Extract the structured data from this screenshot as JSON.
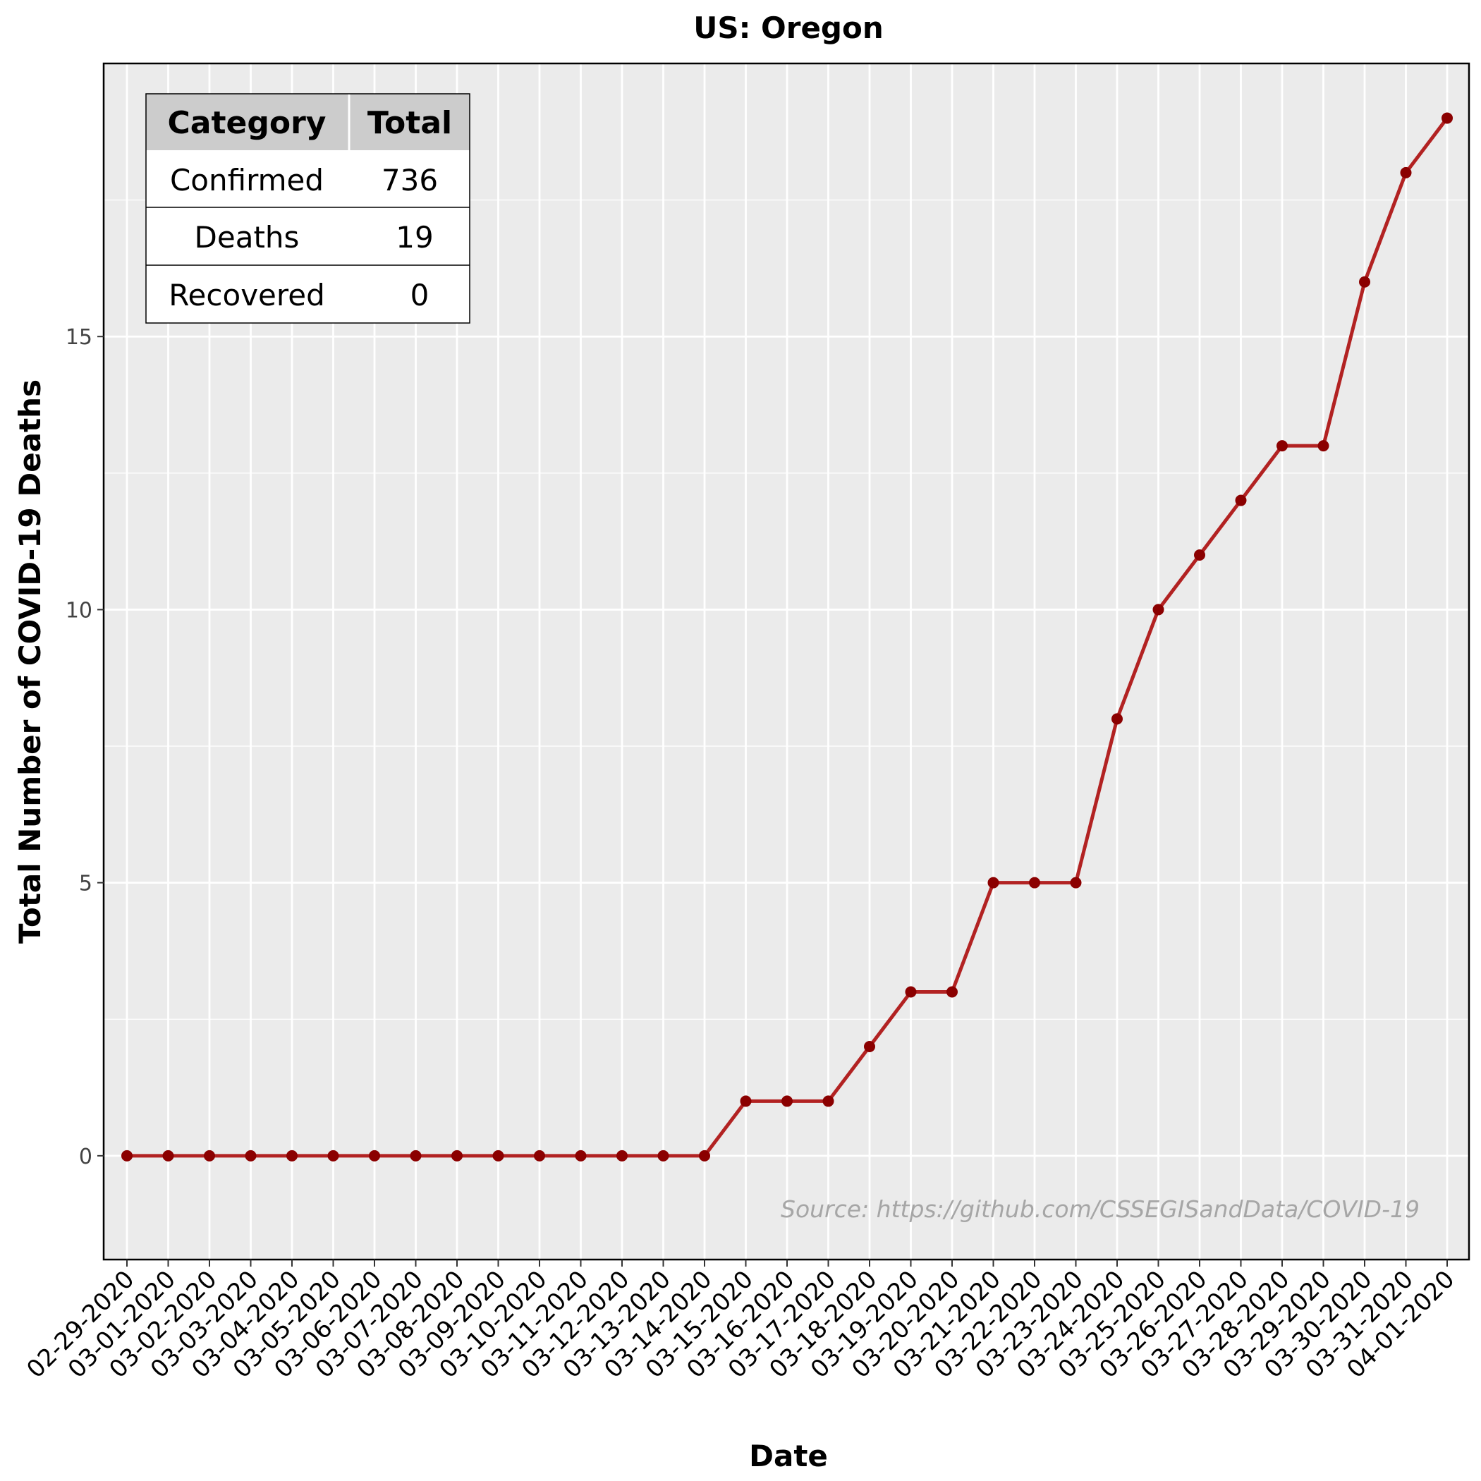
{
  "chart_data": {
    "type": "line",
    "title": "US: Oregon",
    "xlabel": "Date",
    "ylabel": "Total Number of COVID-19 Deaths",
    "x": [
      "02-29-2020",
      "03-01-2020",
      "03-02-2020",
      "03-03-2020",
      "03-04-2020",
      "03-05-2020",
      "03-06-2020",
      "03-07-2020",
      "03-08-2020",
      "03-09-2020",
      "03-10-2020",
      "03-11-2020",
      "03-12-2020",
      "03-13-2020",
      "03-14-2020",
      "03-15-2020",
      "03-16-2020",
      "03-17-2020",
      "03-18-2020",
      "03-19-2020",
      "03-20-2020",
      "03-21-2020",
      "03-22-2020",
      "03-23-2020",
      "03-24-2020",
      "03-25-2020",
      "03-26-2020",
      "03-27-2020",
      "03-28-2020",
      "03-29-2020",
      "03-30-2020",
      "03-31-2020",
      "04-01-2020"
    ],
    "series": [
      {
        "values": [
          0,
          0,
          0,
          0,
          0,
          0,
          0,
          0,
          0,
          0,
          0,
          0,
          0,
          0,
          0,
          1,
          1,
          1,
          2,
          3,
          3,
          5,
          5,
          5,
          8,
          10,
          11,
          12,
          13,
          13,
          16,
          18,
          19
        ]
      }
    ],
    "yticks": [
      0,
      5,
      10,
      15
    ],
    "ylim": [
      -1.9,
      20
    ],
    "grid": true,
    "line_color": "#b22222",
    "background_color": "#ebebeb",
    "annotation": "Source: https://github.com/CSSEGISandData/COVID-19",
    "summary_table": {
      "headers": [
        "Category",
        "Total"
      ],
      "rows": [
        [
          "Confirmed",
          "736"
        ],
        [
          "Deaths",
          "19"
        ],
        [
          "Recovered",
          "0"
        ]
      ]
    }
  }
}
